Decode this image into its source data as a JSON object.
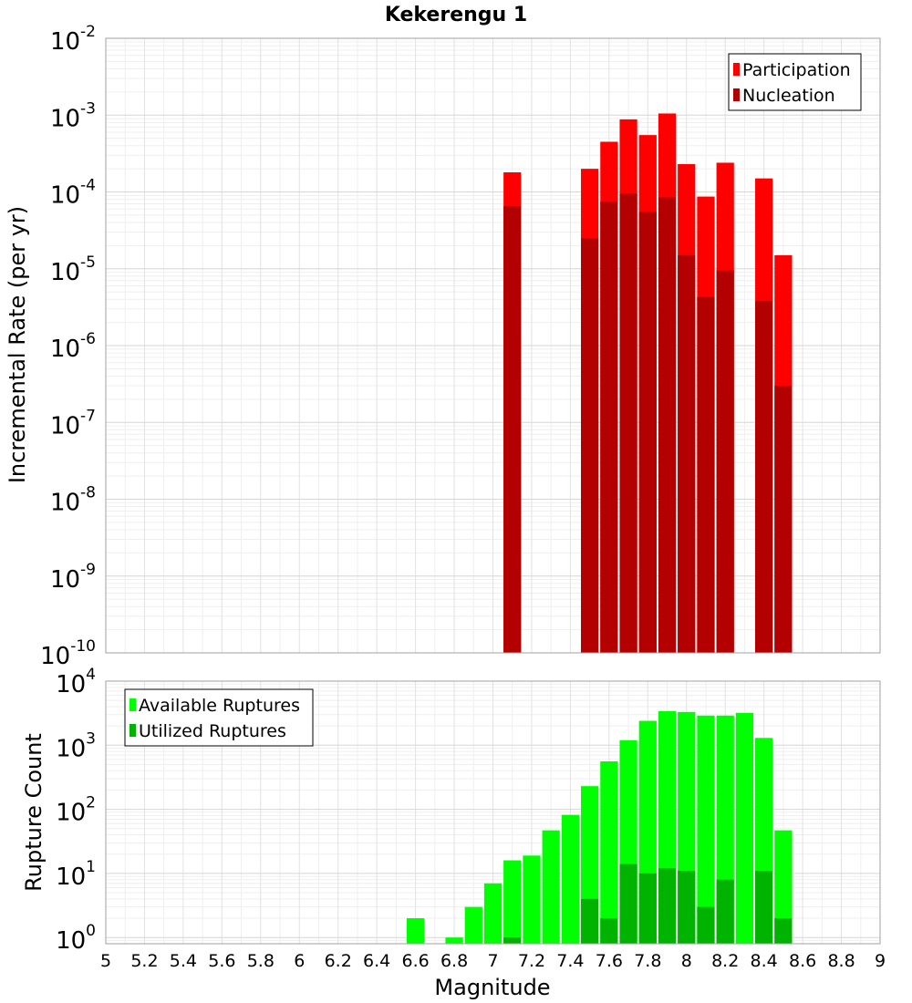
{
  "chart_data": [
    {
      "type": "bar",
      "title": "Kekerengu 1",
      "ylabel": "Incremental Rate (per yr)",
      "yscale": "log",
      "ylim": [
        1e-10,
        0.01
      ],
      "ytick_exponents": [
        "-10",
        "-9",
        "-8",
        "-7",
        "-6",
        "-5",
        "-4",
        "-3",
        "-2"
      ],
      "ytick_base": "10",
      "xlim": [
        5,
        9
      ],
      "bin_width": 0.1,
      "grid": true,
      "legend_position": "top-right",
      "x": [
        7.1,
        7.5,
        7.6,
        7.7,
        7.8,
        7.9,
        8.0,
        8.1,
        8.2,
        8.4,
        8.5
      ],
      "series": [
        {
          "name": "Participation",
          "color": "#ff0000",
          "values": [
            0.00018,
            0.0002,
            0.00045,
            0.00088,
            0.00055,
            0.00105,
            0.00023,
            8.7e-05,
            0.00024,
            0.00015,
            1.5e-05
          ]
        },
        {
          "name": "Nucleation",
          "color": "#b30000",
          "values": [
            6.5e-05,
            2.5e-05,
            7.5e-05,
            9.5e-05,
            5.5e-05,
            8.5e-05,
            1.5e-05,
            4.3e-06,
            9.5e-06,
            3.8e-06,
            3e-07
          ]
        }
      ]
    },
    {
      "type": "bar",
      "xlabel": "Magnitude",
      "ylabel": "Rupture Count",
      "yscale": "log",
      "ylim": [
        0.8,
        10000
      ],
      "ytick_exponents": [
        "0",
        "1",
        "2",
        "3",
        "4"
      ],
      "ytick_base": "10",
      "xlim": [
        5,
        9
      ],
      "xticks": [
        "5",
        "5.2",
        "5.4",
        "5.6",
        "5.8",
        "6",
        "6.2",
        "6.4",
        "6.6",
        "6.8",
        "7",
        "7.2",
        "7.4",
        "7.6",
        "7.8",
        "8",
        "8.2",
        "8.4",
        "8.6",
        "8.8",
        "9"
      ],
      "bin_width": 0.1,
      "grid": true,
      "legend_position": "top-left",
      "x": [
        6.6,
        6.8,
        6.9,
        7.0,
        7.1,
        7.2,
        7.3,
        7.4,
        7.5,
        7.6,
        7.7,
        7.8,
        7.9,
        8.0,
        8.1,
        8.2,
        8.3,
        8.4,
        8.5
      ],
      "series": [
        {
          "name": "Available Ruptures",
          "color": "#00ff00",
          "values": [
            2,
            1,
            3,
            7,
            16,
            19,
            47,
            82,
            230,
            560,
            1200,
            2400,
            3400,
            3300,
            2900,
            2900,
            3200,
            1300,
            47
          ]
        },
        {
          "name": "Utilized Ruptures",
          "color": "#00b300",
          "values": [
            0,
            0,
            0,
            0,
            1,
            0,
            0,
            0,
            4,
            2,
            14,
            10,
            12,
            11,
            3,
            8,
            0,
            11,
            2
          ]
        }
      ]
    }
  ]
}
